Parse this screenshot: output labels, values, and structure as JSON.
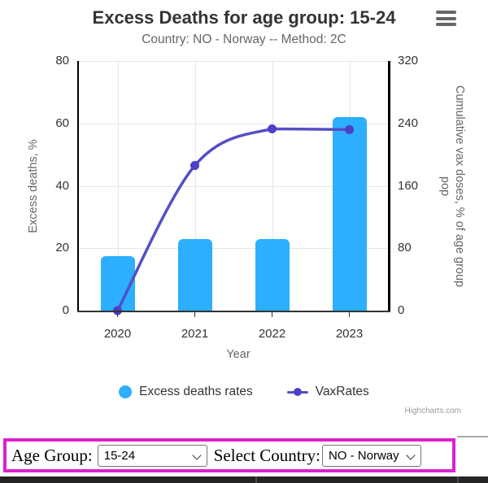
{
  "chart": {
    "title": "Excess Deaths for age group: 15-24",
    "subtitle": "Country: NO - Norway -- Method: 2C",
    "x_axis_title": "Year",
    "y_left_title": "Excess deaths, %",
    "y_right_title_line1": "Cumulative vax doses, % of age group",
    "y_right_title_line2": "pop",
    "legend": {
      "series1_label": "Excess deaths rates",
      "series2_label": "VaxRates"
    },
    "credits": "Highcharts.com",
    "colors": {
      "bar": "#2CAFFE",
      "line": "#544FC5",
      "marker": "#4E3FC8",
      "highlight_box": "#DB22CE"
    }
  },
  "chart_data": {
    "type": "combo: bar + spline",
    "title": "Excess Deaths for age group: 15-24",
    "subtitle": "Country: NO - Norway -- Method: 2C",
    "categories": [
      "2020",
      "2021",
      "2022",
      "2023"
    ],
    "series": [
      {
        "name": "Excess deaths rates",
        "type": "bar",
        "y_axis": "left",
        "values": [
          17.5,
          23,
          23,
          62
        ]
      },
      {
        "name": "VaxRates",
        "type": "spline",
        "y_axis": "right",
        "values": [
          0,
          186,
          233,
          232
        ]
      }
    ],
    "xlabel": "Year",
    "ylabel_left": "Excess deaths, %",
    "ylabel_right": "Cumulative vax doses, % of age group pop",
    "ylim_left": [
      0,
      80
    ],
    "ylim_right": [
      0,
      320
    ],
    "y_left_ticks": [
      0,
      20,
      40,
      60,
      80
    ],
    "y_right_ticks": [
      0,
      80,
      160,
      240,
      320
    ],
    "grid": true,
    "legend_position": "bottom"
  },
  "controls": {
    "age_group_label": "Age Group:",
    "age_group_value": "15-24",
    "country_label": "Select Country:",
    "country_value": "NO - Norway"
  }
}
